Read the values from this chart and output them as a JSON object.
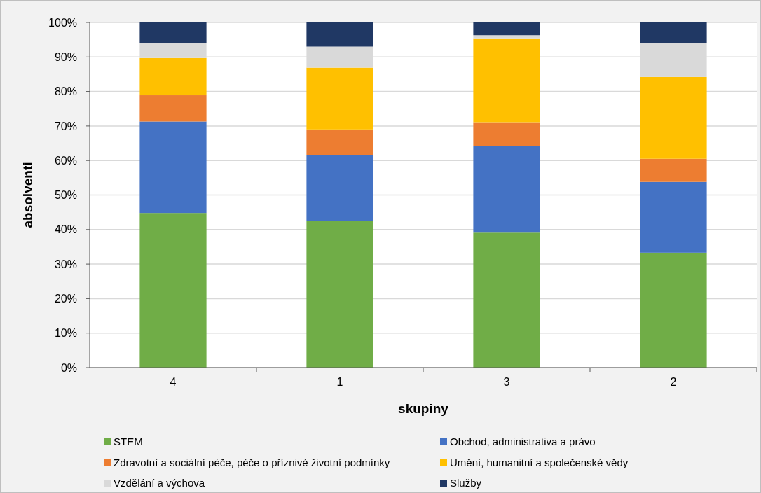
{
  "chart_data": {
    "type": "bar",
    "stacked": true,
    "xlabel": "skupiny",
    "ylabel": "absolventi",
    "categories": [
      "4",
      "1",
      "3",
      "2"
    ],
    "series": [
      {
        "name": "STEM",
        "color": "#70ad47",
        "values": [
          44.8,
          42.4,
          39.1,
          33.3
        ]
      },
      {
        "name": "Obchod, administrativa a právo",
        "color": "#4472c4",
        "values": [
          26.5,
          19.1,
          25.1,
          20.5
        ]
      },
      {
        "name": "Zdravotní a sociální péče, péče o příznivé životní podmínky",
        "color": "#ed7d31",
        "values": [
          7.6,
          7.5,
          6.9,
          6.7
        ]
      },
      {
        "name": "Umění, humanitní a společenské vědy",
        "color": "#ffc000",
        "values": [
          10.8,
          17.9,
          24.3,
          23.7
        ]
      },
      {
        "name": "Vzdělání a výchova",
        "color": "#d9d9d9",
        "values": [
          4.4,
          6.1,
          0.9,
          9.9
        ]
      },
      {
        "name": "Služby",
        "color": "#203864",
        "values": [
          5.9,
          7.0,
          3.7,
          5.9
        ]
      }
    ],
    "ylim": [
      0,
      100
    ],
    "yticks": [
      {
        "value": 0,
        "label": "0%"
      },
      {
        "value": 10,
        "label": "10%"
      },
      {
        "value": 20,
        "label": "20%"
      },
      {
        "value": 30,
        "label": "30%"
      },
      {
        "value": 40,
        "label": "40%"
      },
      {
        "value": 50,
        "label": "50%"
      },
      {
        "value": 60,
        "label": "60%"
      },
      {
        "value": 70,
        "label": "70%"
      },
      {
        "value": 80,
        "label": "80%"
      },
      {
        "value": 90,
        "label": "90%"
      },
      {
        "value": 100,
        "label": "100%"
      }
    ],
    "grid": "y",
    "legend": "bottom"
  }
}
